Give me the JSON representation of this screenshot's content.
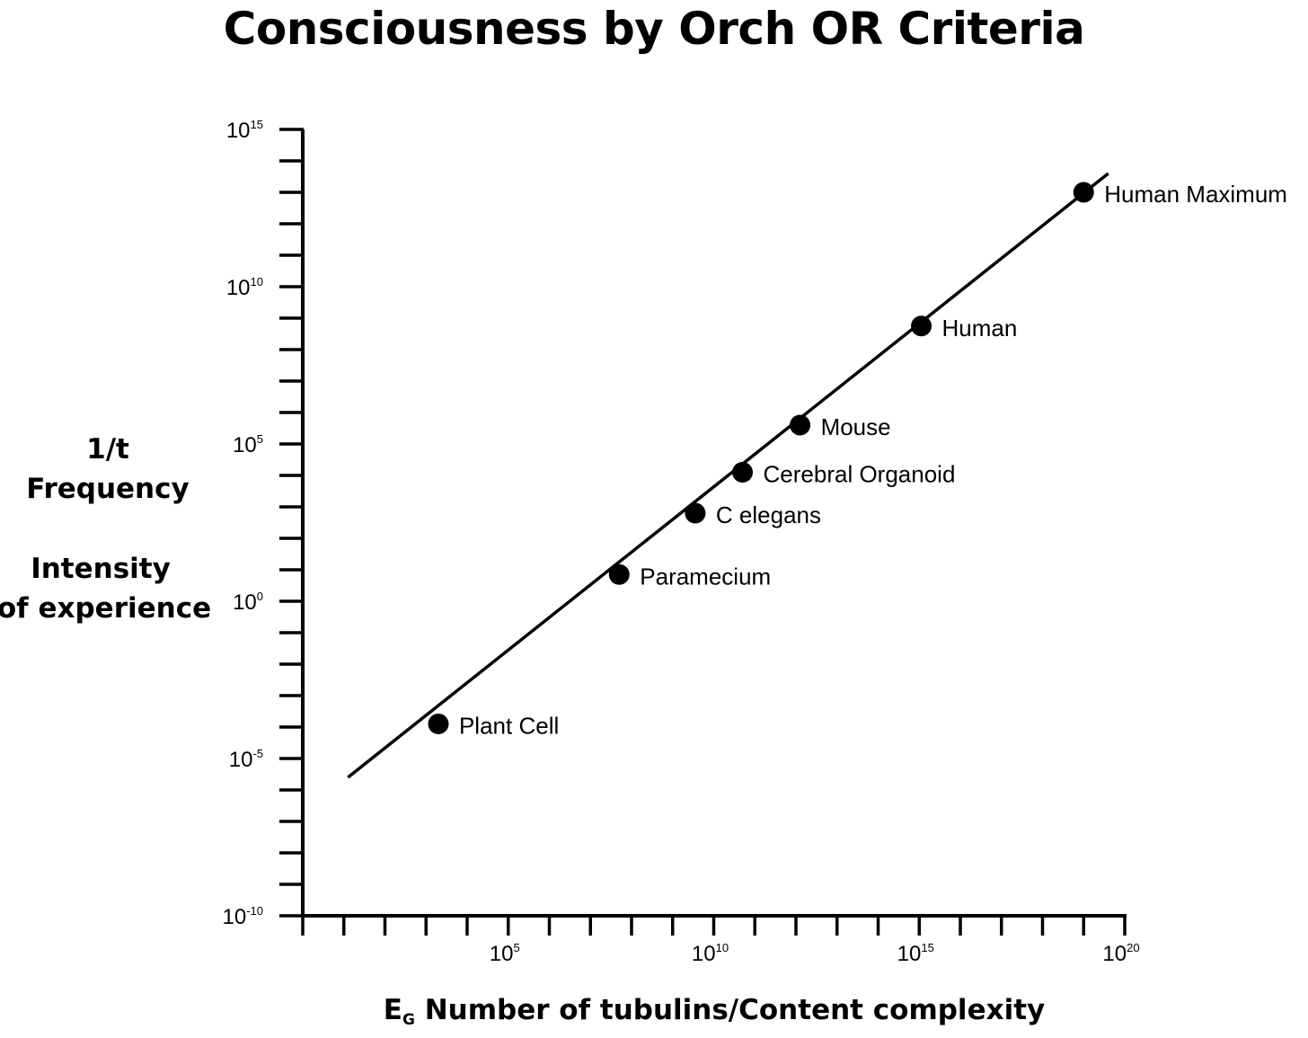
{
  "chart_data": {
    "type": "scatter",
    "title": "Consciousness by Orch OR Criteria",
    "ylabel_lines": [
      "1/t",
      "Frequency",
      "Intensity",
      "of experience"
    ],
    "xlabel": {
      "prefix": "E",
      "subscript": "G",
      "text": " Number of tubulins/Content complexity"
    },
    "x_scale": "log",
    "y_scale": "log",
    "xlim_exp": [
      0,
      20
    ],
    "ylim_exp": [
      -10,
      15
    ],
    "x_ticks": [
      {
        "base": "10",
        "exp": "5",
        "value_exp": 5
      },
      {
        "base": "10",
        "exp": "10",
        "value_exp": 10
      },
      {
        "base": "10",
        "exp": "15",
        "value_exp": 15
      },
      {
        "base": "10",
        "exp": "20",
        "value_exp": 20
      }
    ],
    "y_ticks": [
      {
        "base": "10",
        "exp": "15",
        "value_exp": 15
      },
      {
        "base": "10",
        "exp": "10",
        "value_exp": 10
      },
      {
        "base": "10",
        "exp": "5",
        "value_exp": 5
      },
      {
        "base": "10",
        "exp": "0",
        "value_exp": 0
      },
      {
        "base": "10",
        "exp": "-5",
        "value_exp": -5
      },
      {
        "base": "10",
        "exp": "-10",
        "value_exp": -10
      }
    ],
    "trend_line": {
      "x_exp": [
        1.1,
        19.6
      ],
      "y_exp": [
        -5.6,
        13.6
      ]
    },
    "points": [
      {
        "label": "Plant Cell",
        "x_exp": 3.3,
        "y_exp": -3.9
      },
      {
        "label": "Paramecium",
        "x_exp": 7.7,
        "y_exp": 0.85
      },
      {
        "label": "C elegans",
        "x_exp": 9.55,
        "y_exp": 2.8
      },
      {
        "label": "Cerebral Organoid",
        "x_exp": 10.7,
        "y_exp": 4.1
      },
      {
        "label": "Mouse",
        "x_exp": 12.1,
        "y_exp": 5.6
      },
      {
        "label": "Human",
        "x_exp": 15.05,
        "y_exp": 8.75
      },
      {
        "label": "Human Maximum",
        "x_exp": 19.0,
        "y_exp": 13.0
      }
    ],
    "grid": false,
    "legend": "none",
    "colors": {
      "ink": "#000000",
      "background": "#ffffff"
    }
  }
}
